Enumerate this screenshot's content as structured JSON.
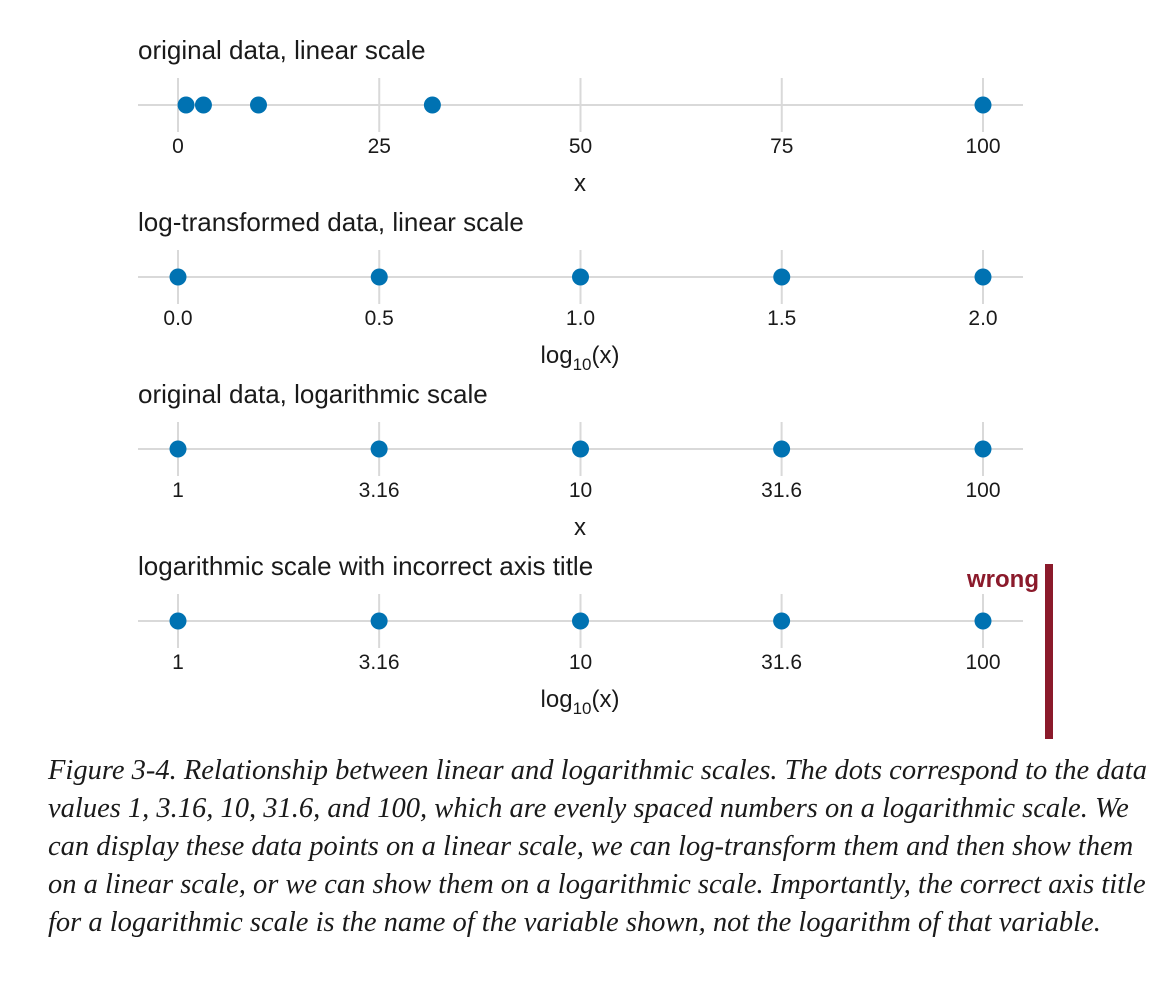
{
  "colors": {
    "dot": "#0072b2",
    "grid": "#d9d9d9",
    "wrong": "#8b1a2b",
    "text": "#1a1a1a"
  },
  "chart_data": [
    {
      "type": "scatter",
      "title": "original data, linear scale",
      "scale": "linear",
      "x": [
        1,
        3.16,
        10,
        31.6,
        100
      ],
      "xlim": [
        0,
        100
      ],
      "xticks": [
        0,
        25,
        50,
        75,
        100
      ],
      "xticklabels": [
        "0",
        "25",
        "50",
        "75",
        "100"
      ],
      "xlabel": "x",
      "xlabel_subscript": "",
      "xlabel_tail": ""
    },
    {
      "type": "scatter",
      "title": "log-transformed data, linear scale",
      "scale": "linear",
      "x": [
        0.0,
        0.5,
        1.0,
        1.5,
        2.0
      ],
      "xlim": [
        0,
        2
      ],
      "xticks": [
        0,
        0.5,
        1.0,
        1.5,
        2.0
      ],
      "xticklabels": [
        "0.0",
        "0.5",
        "1.0",
        "1.5",
        "2.0"
      ],
      "xlabel": "log",
      "xlabel_subscript": "10",
      "xlabel_tail": "(x)"
    },
    {
      "type": "scatter",
      "title": "original data, logarithmic scale",
      "scale": "log",
      "x": [
        1,
        3.16,
        10,
        31.6,
        100
      ],
      "xlim": [
        1,
        100
      ],
      "xticks": [
        1,
        3.16,
        10,
        31.6,
        100
      ],
      "xticklabels": [
        "1",
        "3.16",
        "10",
        "31.6",
        "100"
      ],
      "xlabel": "x",
      "xlabel_subscript": "",
      "xlabel_tail": ""
    },
    {
      "type": "scatter",
      "title": "logarithmic scale with incorrect axis title",
      "scale": "log",
      "x": [
        1,
        3.16,
        10,
        31.6,
        100
      ],
      "xlim": [
        1,
        100
      ],
      "xticks": [
        1,
        3.16,
        10,
        31.6,
        100
      ],
      "xticklabels": [
        "1",
        "3.16",
        "10",
        "31.6",
        "100"
      ],
      "xlabel": "log",
      "xlabel_subscript": "10",
      "xlabel_tail": "(x)",
      "flag": "wrong"
    }
  ],
  "caption": "Figure 3-4. Relationship between linear and logarithmic scales. The dots correspond to the data values 1, 3.16, 10, 31.6, and 100, which are evenly spaced numbers on a logarithmic scale. We can display these data points on a linear scale, we can log-transform them and then show them on a linear scale, or we can show them on a logarithmic scale. Importantly, the correct axis title for a logarithmic scale is the name of the variable shown, not the logarithm of that variable."
}
